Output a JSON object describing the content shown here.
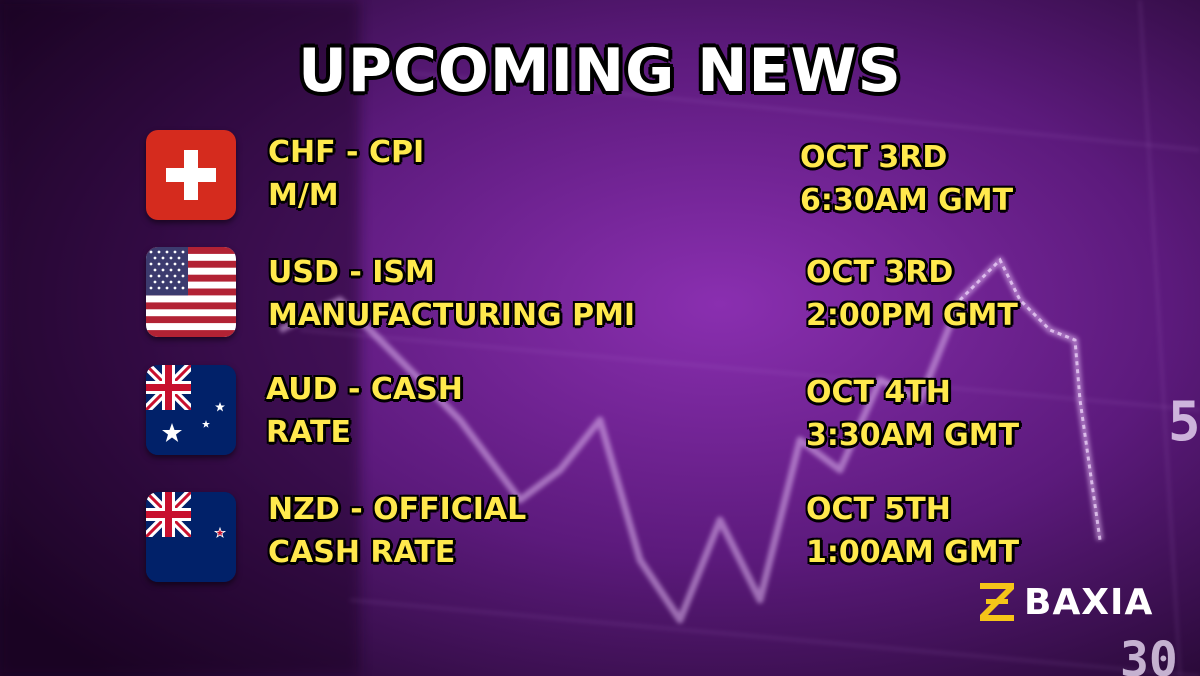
{
  "title": "UPCOMING NEWS",
  "events": [
    {
      "flag": "switzerland-flag",
      "line1": "CHF - CPI",
      "line2": "M/M",
      "date": "OCT 3RD",
      "time": "6:30AM GMT"
    },
    {
      "flag": "usa-flag",
      "line1": "USD - ISM",
      "line2": "MANUFACTURING PMI",
      "date": "OCT 3RD",
      "time": "2:00PM GMT"
    },
    {
      "flag": "australia-flag",
      "line1": "AUD - CASH",
      "line2": "RATE",
      "date": "OCT 4TH",
      "time": "3:30AM GMT"
    },
    {
      "flag": "new-zealand-flag",
      "line1": "NZD - OFFICIAL",
      "line2": "CASH RATE",
      "date": "OCT 5TH",
      "time": "1:00AM GMT"
    }
  ],
  "brand": {
    "name": "BAXIA",
    "logo_color": "#f5c518"
  },
  "colors": {
    "text_accent": "#ffe94d",
    "background": "#5a1a7a"
  },
  "background_ticks": [
    "5",
    "30"
  ]
}
